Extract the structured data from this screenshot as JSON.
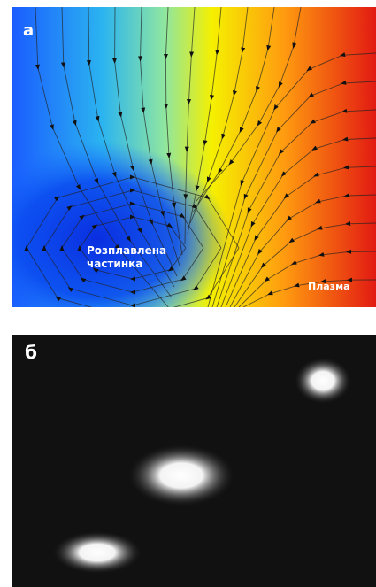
{
  "panel_a": {
    "label": "а",
    "particle_label": [
      "Розплавлена",
      "частинка"
    ],
    "plasma_label": "Плазма"
  },
  "panel_b": {
    "label": "б"
  }
}
